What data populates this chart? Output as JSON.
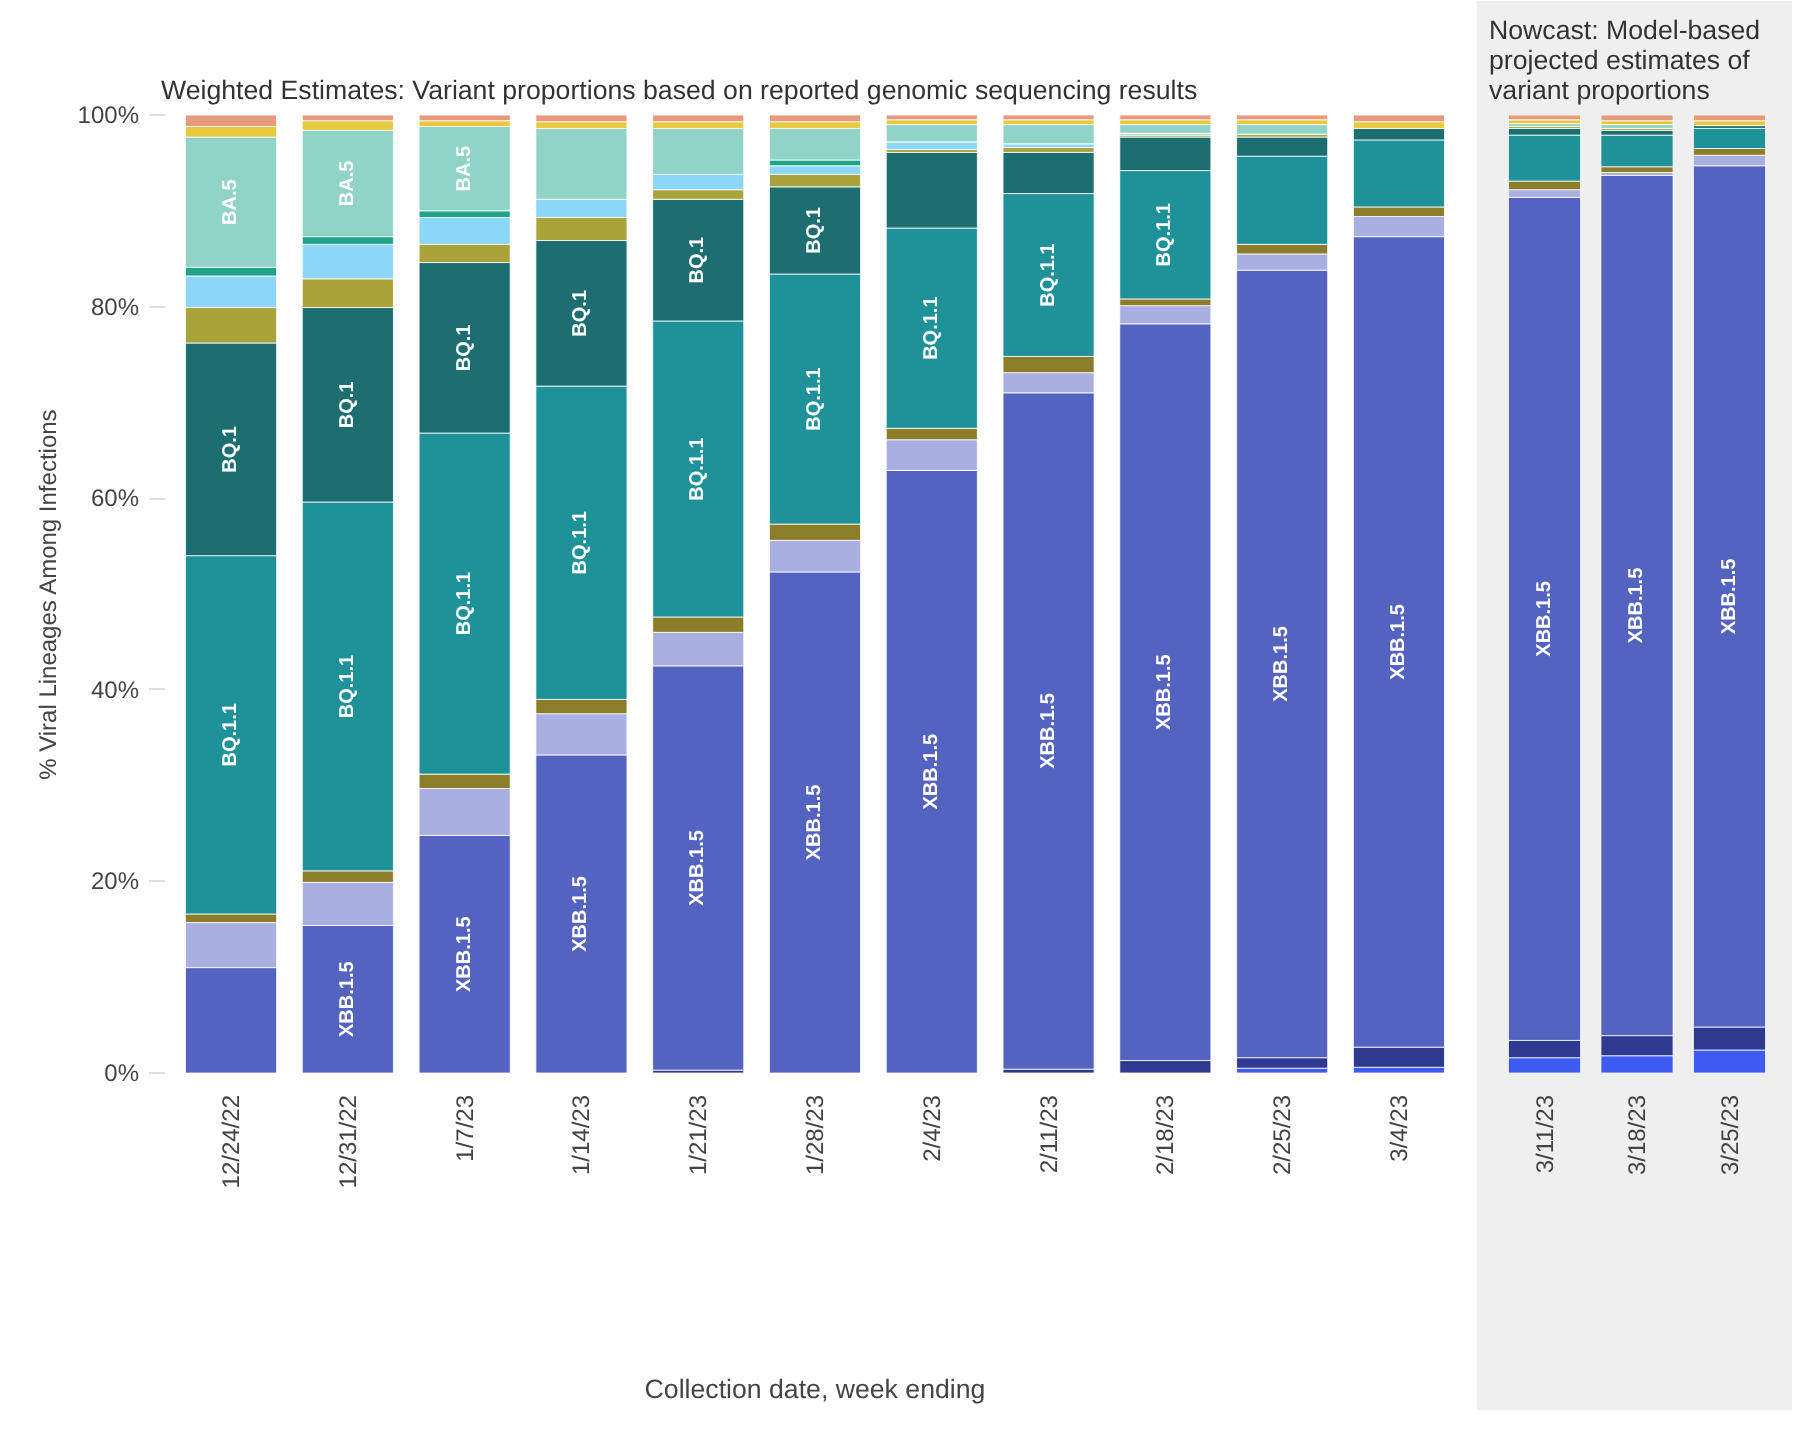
{
  "chart_data": [
    {
      "type": "bar",
      "stacked": true,
      "title": "Weighted Estimates: Variant proportions based on reported genomic sequencing results",
      "xlabel": "Collection date, week ending",
      "ylabel": "% Viral Lineages Among Infections",
      "categories": [
        "12/24/22",
        "12/31/22",
        "1/7/23",
        "1/14/23",
        "1/21/23",
        "1/28/23",
        "2/4/23",
        "2/11/23",
        "2/18/23",
        "2/25/23",
        "3/4/23"
      ],
      "ylim": [
        0,
        100
      ],
      "yticks": [
        {
          "value": 0,
          "label": "0%"
        },
        {
          "value": 20,
          "label": "20%"
        },
        {
          "value": 40,
          "label": "40%"
        },
        {
          "value": 60,
          "label": "60%"
        },
        {
          "value": 80,
          "label": "80%"
        },
        {
          "value": 100,
          "label": "100%"
        }
      ],
      "grid": false,
      "series": [
        {
          "color": "#3d5af1",
          "values": [
            0,
            0,
            0,
            0,
            0,
            0,
            0,
            0,
            null,
            0.5,
            0.6
          ]
        },
        {
          "color": "#2e3a8f",
          "values": [
            0,
            0,
            0,
            0,
            0.3,
            0,
            0,
            0.4,
            1.3,
            1.1,
            2.1
          ]
        },
        {
          "color": "#5463bf",
          "values": [
            11,
            15.4,
            24.8,
            33.2,
            42.2,
            52.3,
            62.9,
            70.6,
            76.9,
            82.2,
            84.6
          ],
          "value_labels": [
            null,
            "XBB.1.5",
            "XBB.1.5",
            "XBB.1.5",
            "XBB.1.5",
            "XBB.1.5",
            "XBB.1.5",
            "XBB.1.5",
            "XBB.1.5",
            "XBB.1.5",
            "XBB.1.5"
          ]
        },
        {
          "color": "#a9afe0",
          "values": [
            4.7,
            4.5,
            4.9,
            4.3,
            3.5,
            3.3,
            3.2,
            2.1,
            1.9,
            1.7,
            2.1
          ]
        },
        {
          "color": "#8c7d2b",
          "values": [
            0.9,
            1.2,
            1.5,
            1.5,
            1.6,
            1.7,
            1.2,
            1.7,
            0.7,
            1.0,
            1.0
          ]
        },
        {
          "color": "#1f9198",
          "values": [
            37.4,
            38.5,
            35.6,
            32.7,
            30.9,
            26.1,
            20.9,
            17.0,
            13.4,
            9.2,
            7.0
          ],
          "value_labels": [
            "BQ.1.1",
            "BQ.1.1",
            "BQ.1.1",
            "BQ.1.1",
            "BQ.1.1",
            "BQ.1.1",
            "BQ.1.1",
            "BQ.1.1",
            "BQ.1.1",
            null,
            null
          ]
        },
        {
          "color": "#1c6e71",
          "values": [
            22.2,
            20.3,
            17.8,
            15.2,
            12.7,
            9.1,
            7.9,
            4.3,
            3.5,
            2.0,
            1.2
          ],
          "value_labels": [
            "BQ.1",
            "BQ.1",
            "BQ.1",
            "BQ.1",
            "BQ.1",
            "BQ.1",
            null,
            null,
            null,
            null,
            null
          ]
        },
        {
          "color": "#aaa33b",
          "values": [
            3.7,
            3.0,
            1.9,
            2.4,
            1.0,
            1.3,
            0.3,
            0.5,
            0.2,
            0.3,
            0
          ]
        },
        {
          "color": "#8cd6f7",
          "values": [
            3.3,
            3.6,
            2.8,
            1.9,
            1.6,
            0.9,
            0.8,
            0.4,
            0.2,
            0,
            0
          ]
        },
        {
          "color": "#1fa38b",
          "values": [
            0.9,
            0.8,
            0.7,
            0,
            0,
            0.6,
            0,
            0,
            0,
            0,
            0
          ]
        },
        {
          "color": "#8fd4c6",
          "values": [
            13.6,
            11.1,
            8.8,
            7.4,
            4.8,
            3.3,
            1.8,
            2.0,
            0.9,
            1.0,
            0
          ],
          "value_labels": [
            "BA.5",
            "BA.5",
            "BA.5",
            null,
            null,
            null,
            null,
            null,
            null,
            null,
            null
          ]
        },
        {
          "color": "#e8c83e",
          "values": [
            1.1,
            1.0,
            0.6,
            0.7,
            0.7,
            0.7,
            0.5,
            0.5,
            0.5,
            0.5,
            0.7
          ]
        },
        {
          "color": "#e99a7e",
          "values": [
            1.2,
            0.6,
            0.6,
            0.7,
            0.7,
            0.7,
            0.5,
            0.5,
            0.5,
            0.5,
            0.7
          ]
        }
      ]
    },
    {
      "type": "bar",
      "stacked": true,
      "title": "Nowcast: Model-based projected estimates of variant proportions",
      "categories": [
        "3/11/23",
        "3/18/23",
        "3/25/23"
      ],
      "ylim": [
        0,
        100
      ],
      "tick_labels": "x",
      "grid": false,
      "series": [
        {
          "color": "#3d5af1",
          "values": [
            1.6,
            1.8,
            2.4
          ]
        },
        {
          "color": "#2e3a8f",
          "values": [
            1.8,
            2.1,
            2.4
          ]
        },
        {
          "color": "#5463bf",
          "values": [
            88.0,
            89.8,
            89.9
          ],
          "value_labels": [
            "XBB.1.5",
            "XBB.1.5",
            "XBB.1.5"
          ]
        },
        {
          "color": "#a9afe0",
          "values": [
            0.8,
            0.3,
            1.1
          ]
        },
        {
          "color": "#8c7d2b",
          "values": [
            0.9,
            0.6,
            0.7
          ]
        },
        {
          "color": "#1f9198",
          "values": [
            4.8,
            3.3,
            2.1
          ]
        },
        {
          "color": "#1c6e71",
          "values": [
            0.7,
            0.5,
            0.3
          ]
        },
        {
          "color": "#aaa33b",
          "values": [
            0.2,
            0.2,
            0
          ]
        },
        {
          "color": "#8fd4c6",
          "values": [
            0.3,
            0.4,
            0
          ]
        },
        {
          "color": "#e8c83e",
          "values": [
            0.4,
            0.4,
            0.5
          ]
        },
        {
          "color": "#e99a7e",
          "values": [
            0.5,
            0.6,
            0.6
          ]
        }
      ]
    }
  ]
}
